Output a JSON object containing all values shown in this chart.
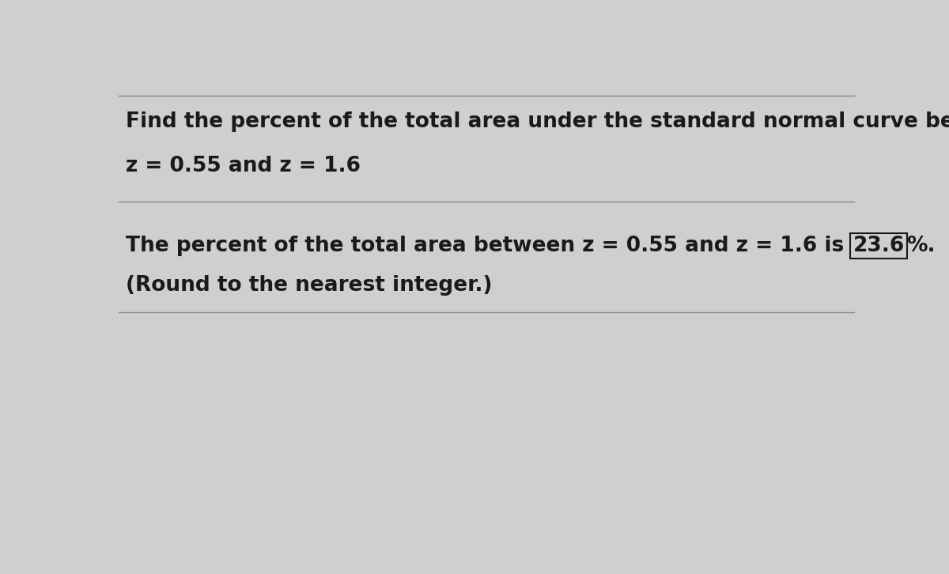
{
  "line1": "Find the percent of the total area under the standard normal curve between the following z-scores.",
  "line2": "z = 0.55 and z = 1.6",
  "line3_part1": "The percent of the total area between z = 0.55 and z = 1.6 is ",
  "line3_boxed": "23.6",
  "line3_part2": "%.",
  "line4": "(Round to the nearest integer.)",
  "bg_color": "#d0cece",
  "text_color": "#1a1a1a",
  "divider_color": "#888888",
  "box_color": "#1a1a1a",
  "font_size": 19
}
